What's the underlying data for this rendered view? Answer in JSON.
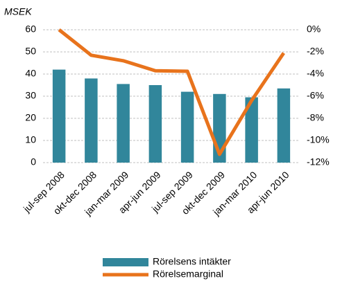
{
  "chart_data": {
    "type": "bar_line",
    "y_axis_label": "MSEK",
    "categories": [
      "jul-sep 2008",
      "okt-dec 2008",
      "jan-mar 2009",
      "apr-jun 2009",
      "jul-sep 2009",
      "okt-dec 2009",
      "jan-mar 2010",
      "apr-jun 2010"
    ],
    "series": [
      {
        "name": "Rörelsens intäkter",
        "type": "bar",
        "color": "#31869b",
        "values": [
          42,
          38,
          35.5,
          35,
          32,
          31,
          29.5,
          33.5
        ]
      },
      {
        "name": "Rörelsemarginal",
        "type": "line",
        "color": "#e8731c",
        "axis": "y2",
        "values": [
          0,
          -2.3,
          -2.8,
          -3.7,
          -3.75,
          -11.25,
          -6.4,
          -2.1
        ]
      }
    ],
    "ylim": [
      0,
      60
    ],
    "yticks": [
      0,
      10,
      20,
      30,
      40,
      50,
      60
    ],
    "y2lim": [
      -12,
      0
    ],
    "y2ticks": [
      {
        "value": 0,
        "label": "0%"
      },
      {
        "value": -2,
        "label": "-2%"
      },
      {
        "value": -4,
        "label": "-4%"
      },
      {
        "value": -6,
        "label": "-6%"
      },
      {
        "value": -8,
        "label": "-8%"
      },
      {
        "value": -10,
        "label": "-10%"
      },
      {
        "value": -12,
        "label": "-12%"
      }
    ],
    "grid": true
  }
}
